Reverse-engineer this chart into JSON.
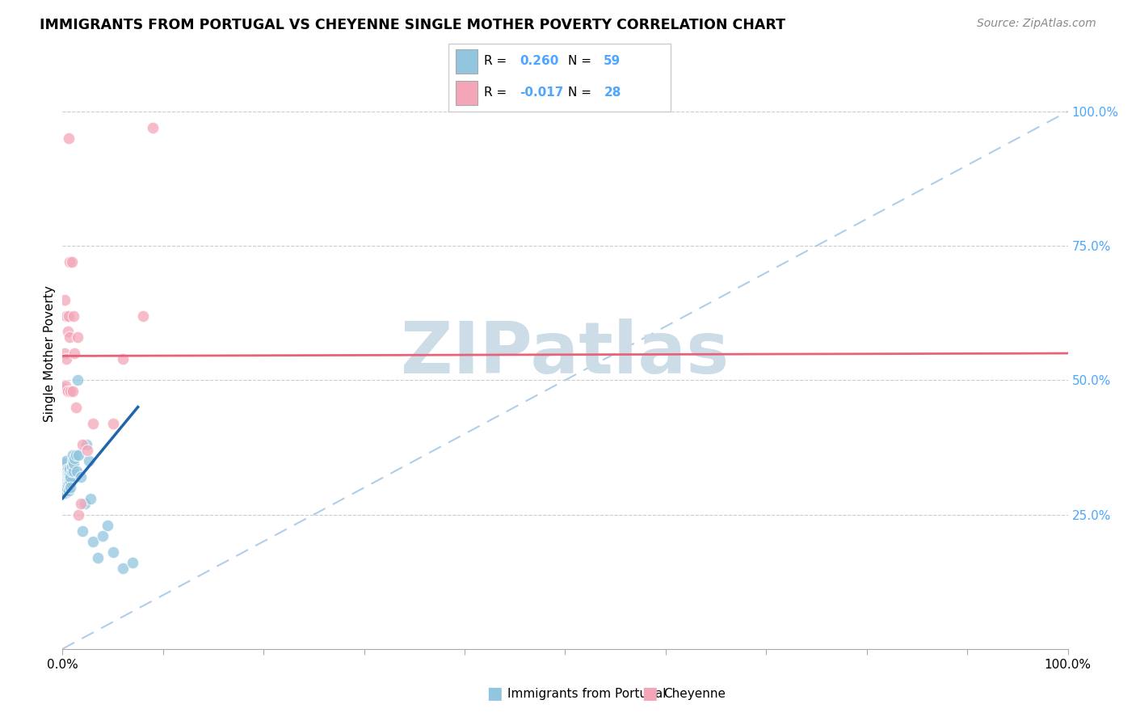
{
  "title": "IMMIGRANTS FROM PORTUGAL VS CHEYENNE SINGLE MOTHER POVERTY CORRELATION CHART",
  "source": "Source: ZipAtlas.com",
  "ylabel": "Single Mother Poverty",
  "legend_label1": "Immigrants from Portugal",
  "legend_label2": "Cheyenne",
  "r1": "0.260",
  "n1": "59",
  "r2": "-0.017",
  "n2": "28",
  "blue_color": "#92c5de",
  "pink_color": "#f4a6b8",
  "blue_line_color": "#2166ac",
  "pink_line_color": "#e8637a",
  "diag_line_color": "#a8c8e8",
  "right_axis_color": "#4da6ff",
  "ytick_right_labels": [
    "25.0%",
    "50.0%",
    "75.0%",
    "100.0%"
  ],
  "ytick_right_values": [
    0.25,
    0.5,
    0.75,
    1.0
  ],
  "blue_scatter_x": [
    0.001,
    0.001,
    0.001,
    0.001,
    0.001,
    0.002,
    0.002,
    0.002,
    0.002,
    0.002,
    0.002,
    0.003,
    0.003,
    0.003,
    0.003,
    0.003,
    0.004,
    0.004,
    0.004,
    0.004,
    0.004,
    0.005,
    0.005,
    0.005,
    0.005,
    0.006,
    0.006,
    0.006,
    0.006,
    0.007,
    0.007,
    0.007,
    0.008,
    0.008,
    0.008,
    0.009,
    0.009,
    0.01,
    0.01,
    0.011,
    0.011,
    0.012,
    0.013,
    0.014,
    0.015,
    0.016,
    0.018,
    0.02,
    0.022,
    0.024,
    0.026,
    0.028,
    0.03,
    0.035,
    0.04,
    0.045,
    0.05,
    0.06,
    0.07
  ],
  "blue_scatter_y": [
    0.305,
    0.315,
    0.325,
    0.335,
    0.295,
    0.31,
    0.32,
    0.33,
    0.34,
    0.3,
    0.29,
    0.315,
    0.325,
    0.335,
    0.305,
    0.345,
    0.32,
    0.33,
    0.31,
    0.3,
    0.35,
    0.315,
    0.325,
    0.335,
    0.305,
    0.32,
    0.31,
    0.33,
    0.295,
    0.315,
    0.325,
    0.335,
    0.31,
    0.32,
    0.3,
    0.33,
    0.34,
    0.35,
    0.36,
    0.33,
    0.345,
    0.355,
    0.36,
    0.33,
    0.5,
    0.36,
    0.32,
    0.22,
    0.27,
    0.38,
    0.35,
    0.28,
    0.2,
    0.17,
    0.21,
    0.23,
    0.18,
    0.15,
    0.16
  ],
  "pink_scatter_x": [
    0.001,
    0.002,
    0.002,
    0.003,
    0.004,
    0.004,
    0.005,
    0.005,
    0.006,
    0.006,
    0.007,
    0.007,
    0.008,
    0.009,
    0.01,
    0.011,
    0.012,
    0.013,
    0.015,
    0.016,
    0.018,
    0.02,
    0.025,
    0.03,
    0.05,
    0.06,
    0.08,
    0.09
  ],
  "pink_scatter_y": [
    0.485,
    0.55,
    0.65,
    0.49,
    0.54,
    0.62,
    0.48,
    0.59,
    0.62,
    0.95,
    0.58,
    0.72,
    0.48,
    0.72,
    0.48,
    0.62,
    0.55,
    0.45,
    0.58,
    0.25,
    0.27,
    0.38,
    0.37,
    0.42,
    0.42,
    0.54,
    0.62,
    0.97
  ],
  "blue_line_x0": 0.0,
  "blue_line_x1": 0.075,
  "blue_line_y0": 0.28,
  "blue_line_y1": 0.45,
  "pink_line_y": 0.545,
  "xlim": [
    0.0,
    1.0
  ],
  "ylim": [
    0.0,
    1.1
  ],
  "watermark_text": "ZIPatlas",
  "watermark_color": "#ccdde8"
}
